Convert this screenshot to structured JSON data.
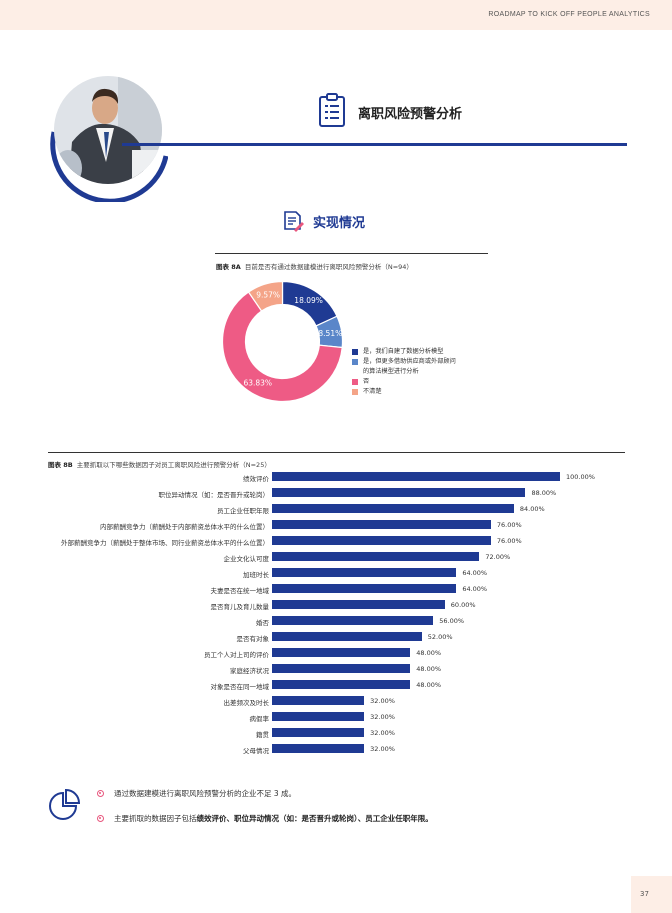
{
  "header": {
    "running_title": "ROADMAP TO KICK OFF PEOPLE ANALYTICS"
  },
  "title": {
    "text": "离职风险预警分析",
    "icon": "clipboard-list-icon"
  },
  "section": {
    "text": "实现情况",
    "icon": "document-edit-icon"
  },
  "figure_8a": {
    "label": "图表 8A",
    "caption": "目前是否有通过数据建模进行离职风险预警分析（N=94）",
    "legend": [
      "是，我们自建了数据分析模型",
      "是，但更多借助供应商或外部顾问",
      "的算法模型进行分析",
      "否",
      "不清楚"
    ]
  },
  "figure_8b": {
    "label": "图表 8B",
    "caption": "主要抓取以下哪些数据因子对员工离职风险进行预警分析（N=25）"
  },
  "chart_data": [
    {
      "type": "pie",
      "variant": "donut",
      "title": "目前是否有通过数据建模进行离职风险预警分析（N=94）",
      "categories": [
        "是，我们自建了数据分析模型",
        "是，但更多借助供应商或外部顾问的算法模型进行分析",
        "否",
        "不清楚"
      ],
      "values": [
        18.09,
        8.51,
        63.83,
        9.57
      ],
      "value_labels": [
        "18.09%",
        "8.51%",
        "63.83%",
        "9.57%"
      ],
      "colors": [
        "#1f3a93",
        "#5a86c9",
        "#ee5b85",
        "#f4a488"
      ],
      "legend_position": "right"
    },
    {
      "type": "bar",
      "orientation": "horizontal",
      "title": "主要抓取以下哪些数据因子对员工离职风险进行预警分析（N=25）",
      "categories": [
        "绩效评价",
        "职位异动情况（如：是否晋升或轮岗）",
        "员工企业任职年限",
        "内部薪酬竞争力（薪酬处于内部薪资总体水平的什么位置）",
        "外部薪酬竞争力（薪酬处于整体市场、同行业薪资总体水平的什么位置）",
        "企业文化认可度",
        "加班时长",
        "夫妻是否在统一地域",
        "是否育儿及育儿数量",
        "婚否",
        "是否有对象",
        "员工个人对上司的评价",
        "家庭经济状况",
        "对象是否在同一地域",
        "出差频次及时长",
        "病假率",
        "籍贯",
        "父母情况"
      ],
      "values": [
        100,
        88,
        84,
        76,
        76,
        72,
        64,
        64,
        60,
        56,
        52,
        48,
        48,
        48,
        32,
        32,
        32,
        32
      ],
      "value_labels": [
        "100.00%",
        "88.00%",
        "84.00%",
        "76.00%",
        "76.00%",
        "72.00%",
        "64.00%",
        "64.00%",
        "60.00%",
        "56.00%",
        "52.00%",
        "48.00%",
        "48.00%",
        "48.00%",
        "32.00%",
        "32.00%",
        "32.00%",
        "32.00%"
      ],
      "xlim": [
        0,
        100
      ],
      "color": "#1f3a93",
      "grid": false
    }
  ],
  "summary": {
    "icon": "pie-chart-icon",
    "bullet1": "通过数据建模进行离职风险预警分析的企业不足 3 成。",
    "bullet2_prefix": "主要抓取的数据因子包括",
    "bullet2_bold": "绩效评价、职位异动情况（如：是否晋升或轮岗）、员工企业任职年限。"
  },
  "page_number": "37"
}
